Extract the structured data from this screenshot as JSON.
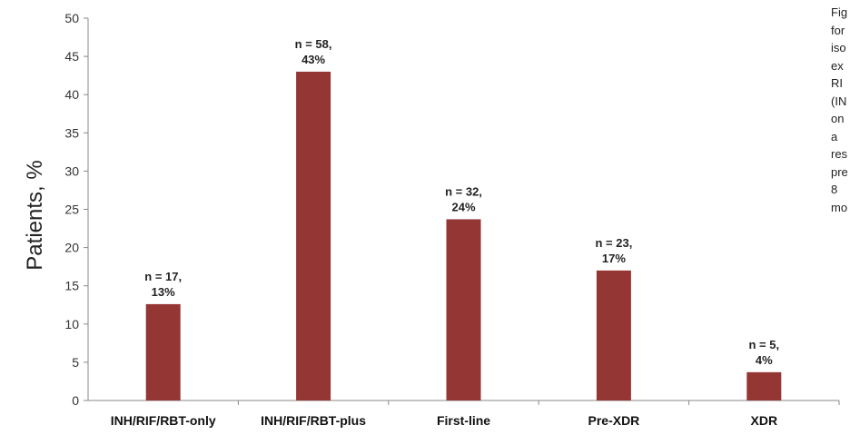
{
  "chart_data": {
    "type": "bar",
    "categories": [
      "INH/RIF/RBT-only",
      "INH/RIF/RBT-plus",
      "First-line",
      "Pre-XDR",
      "XDR"
    ],
    "values": [
      12.6,
      43.0,
      23.7,
      17.0,
      3.7
    ],
    "data_labels": [
      [
        "n = 17,",
        "13%"
      ],
      [
        "n = 58,",
        "43%"
      ],
      [
        "n = 32,",
        "24%"
      ],
      [
        "n = 23,",
        "17%"
      ],
      [
        "n = 5,",
        "4%"
      ]
    ],
    "title": "",
    "xlabel": "",
    "ylabel": "Patients, %",
    "ylim": [
      0,
      50
    ],
    "yticks": [
      0,
      5,
      10,
      15,
      20,
      25,
      30,
      35,
      40,
      45,
      50
    ],
    "grid": false,
    "bar_color": "#943634"
  },
  "caption_fragments": [
    "Fig",
    "for",
    "iso",
    "ex",
    "RI",
    "(IN",
    "on",
    "a",
    "res",
    "pre",
    "8",
    "mo"
  ]
}
